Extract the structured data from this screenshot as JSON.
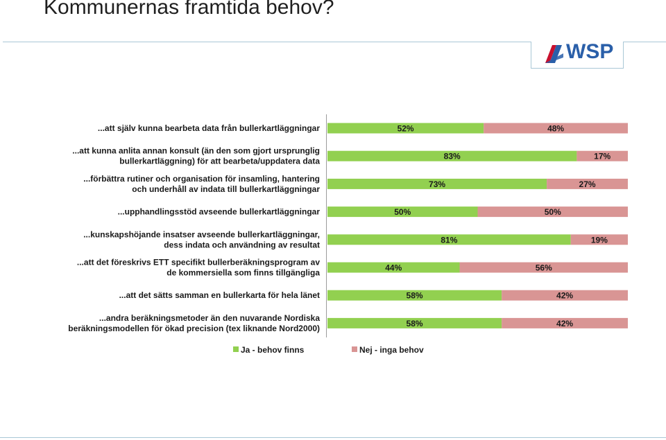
{
  "slide": {
    "title": "Kommunernas framtida behov?",
    "logo_text": "WSP"
  },
  "colors": {
    "ja": "#92d050",
    "nej": "#d99594",
    "rule": "#a9c7d6",
    "logo": "#2a5fa9"
  },
  "chart_data": {
    "type": "bar",
    "orientation": "horizontal",
    "stacked": "percent",
    "categories": [
      [
        "...att själv kunna bearbeta data från bullerkartläggningar"
      ],
      [
        "...att kunna anlita annan konsult (än den som gjort ursprunglig",
        "bullerkartläggning) för att bearbeta/uppdatera data"
      ],
      [
        "...förbättra rutiner och organisation för insamling, hantering",
        "och underhåll av indata till bullerkartläggningar"
      ],
      [
        "...upphandlingsstöd avseende bullerkartläggningar"
      ],
      [
        "...kunskapshöjande insatser avseende bullerkartläggningar,",
        "dess indata och användning av resultat"
      ],
      [
        "...att det föreskrivs ETT specifikt bullerberäkningsprogram av",
        "de kommersiella som finns tillgängliga"
      ],
      [
        "...att det sätts samman en bullerkarta för hela länet"
      ],
      [
        "...andra beräkningsmetoder än den nuvarande Nordiska",
        "beräkningsmodellen för ökad precision (tex liknande Nord2000)"
      ]
    ],
    "series": [
      {
        "name": "Ja - behov finns",
        "values": [
          52,
          83,
          73,
          50,
          81,
          44,
          58,
          58
        ],
        "labels": [
          "52%",
          "83%",
          "73%",
          "50%",
          "81%",
          "44%",
          "58%",
          "58%"
        ]
      },
      {
        "name": "Nej - inga behov",
        "values": [
          48,
          17,
          27,
          50,
          19,
          56,
          42,
          42
        ],
        "labels": [
          "48%",
          "17%",
          "27%",
          "50%",
          "19%",
          "56%",
          "42%",
          "42%"
        ]
      }
    ],
    "xlim": [
      0,
      100
    ],
    "legend_position": "bottom",
    "grid": false
  }
}
